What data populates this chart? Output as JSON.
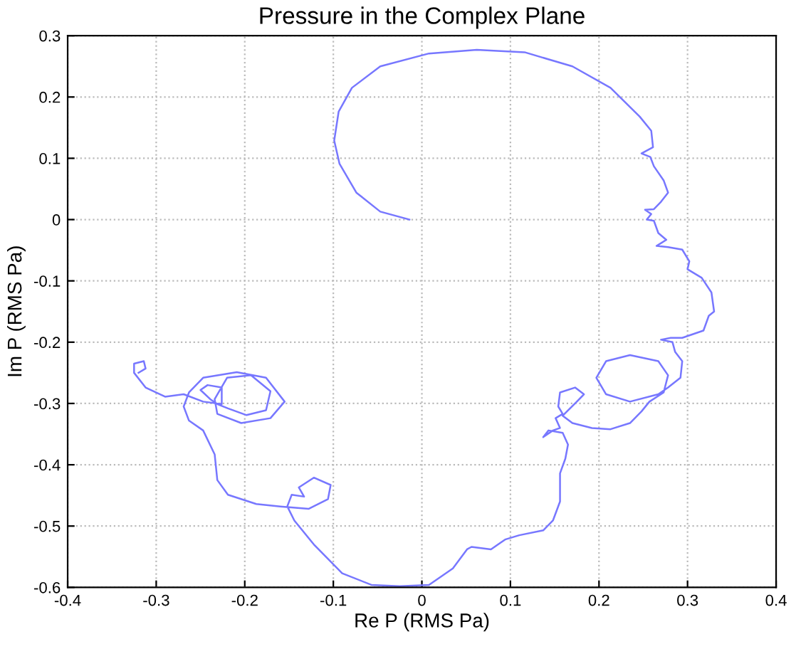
{
  "chart_data": {
    "type": "line",
    "title": "Pressure in the Complex Plane",
    "xlabel": "Re P (RMS Pa)",
    "ylabel": "Im P (RMS Pa)",
    "series": [
      {
        "color": "#7777ff",
        "x": [
          -0.014,
          -0.047,
          -0.074,
          -0.093,
          -0.099,
          -0.094,
          -0.079,
          -0.047,
          0.008,
          0.062,
          0.116,
          0.17,
          0.213,
          0.246,
          0.259,
          0.261,
          0.248,
          0.258,
          0.262,
          0.273,
          0.278,
          0.27,
          0.262,
          0.252,
          0.259,
          0.254,
          0.262,
          0.267,
          0.276,
          0.265,
          0.278,
          0.294,
          0.302,
          0.3,
          0.316,
          0.327,
          0.33,
          0.324,
          0.318,
          0.294,
          0.281,
          0.27,
          0.283,
          0.286,
          0.294,
          0.292,
          0.278,
          0.267,
          0.235,
          0.208,
          0.197,
          0.208,
          0.235,
          0.267,
          0.278,
          0.273,
          0.257,
          0.248,
          0.235,
          0.213,
          0.192,
          0.17,
          0.159,
          0.175,
          0.183,
          0.173,
          0.156,
          0.154,
          0.159,
          0.151,
          0.156,
          0.148,
          0.137,
          0.143,
          0.159,
          0.165,
          0.162,
          0.156,
          0.156,
          0.148,
          0.137,
          0.11,
          0.094,
          0.078,
          0.056,
          0.051,
          0.035,
          0.008,
          -0.025,
          -0.057,
          -0.09,
          -0.122,
          -0.144,
          -0.152,
          -0.147,
          -0.133,
          -0.139,
          -0.122,
          -0.103,
          -0.106,
          -0.128,
          -0.16,
          -0.187,
          -0.219,
          -0.231,
          -0.234,
          -0.247,
          -0.263,
          -0.269,
          -0.263,
          -0.247,
          -0.209,
          -0.176,
          -0.155,
          -0.171,
          -0.204,
          -0.231,
          -0.234,
          -0.22,
          -0.193,
          -0.171,
          -0.176,
          -0.198,
          -0.219,
          -0.231,
          -0.239,
          -0.25,
          -0.242,
          -0.226,
          -0.226,
          -0.247,
          -0.269,
          -0.29,
          -0.312,
          -0.325,
          -0.325,
          -0.314,
          -0.312,
          -0.32
        ],
        "values": [
          0,
          0.013,
          0.044,
          0.091,
          0.129,
          0.176,
          0.215,
          0.25,
          0.271,
          0.277,
          0.273,
          0.25,
          0.215,
          0.168,
          0.145,
          0.118,
          0.108,
          0.102,
          0.087,
          0.064,
          0.044,
          0.029,
          0.017,
          0.016,
          0.009,
          0,
          -0.002,
          -0.022,
          -0.033,
          -0.043,
          -0.045,
          -0.049,
          -0.068,
          -0.081,
          -0.095,
          -0.119,
          -0.15,
          -0.157,
          -0.181,
          -0.193,
          -0.193,
          -0.196,
          -0.2,
          -0.216,
          -0.231,
          -0.258,
          -0.274,
          -0.285,
          -0.297,
          -0.285,
          -0.258,
          -0.231,
          -0.221,
          -0.231,
          -0.254,
          -0.282,
          -0.297,
          -0.313,
          -0.332,
          -0.342,
          -0.34,
          -0.332,
          -0.32,
          -0.297,
          -0.285,
          -0.274,
          -0.282,
          -0.305,
          -0.317,
          -0.324,
          -0.34,
          -0.344,
          -0.355,
          -0.344,
          -0.348,
          -0.367,
          -0.39,
          -0.414,
          -0.46,
          -0.491,
          -0.507,
          -0.515,
          -0.522,
          -0.538,
          -0.534,
          -0.538,
          -0.569,
          -0.596,
          -0.598,
          -0.596,
          -0.577,
          -0.53,
          -0.491,
          -0.468,
          -0.449,
          -0.452,
          -0.437,
          -0.421,
          -0.433,
          -0.456,
          -0.472,
          -0.468,
          -0.464,
          -0.449,
          -0.425,
          -0.383,
          -0.344,
          -0.328,
          -0.305,
          -0.282,
          -0.258,
          -0.249,
          -0.258,
          -0.297,
          -0.324,
          -0.332,
          -0.317,
          -0.293,
          -0.258,
          -0.254,
          -0.28,
          -0.311,
          -0.319,
          -0.308,
          -0.301,
          -0.293,
          -0.278,
          -0.27,
          -0.274,
          -0.301,
          -0.297,
          -0.285,
          -0.289,
          -0.274,
          -0.25,
          -0.235,
          -0.231,
          -0.243,
          -0.25
        ]
      }
    ],
    "xlim": [
      -0.4,
      0.4
    ],
    "xticks": [
      -0.4,
      -0.3,
      -0.2,
      -0.1,
      0,
      0.1,
      0.2,
      0.3,
      0.4
    ],
    "ylim": [
      -0.6,
      0.3
    ],
    "yticks": [
      -0.6,
      -0.5,
      -0.4,
      -0.3,
      -0.2,
      -0.1,
      0,
      0.1,
      0.2,
      0.3
    ],
    "grid": true,
    "line_style": "solid",
    "marker": "none"
  }
}
